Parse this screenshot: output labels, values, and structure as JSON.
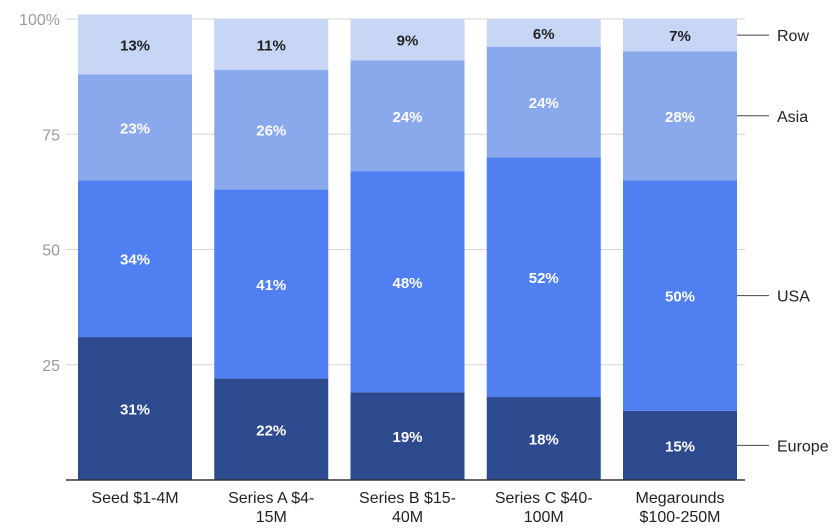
{
  "chart_data": {
    "type": "bar",
    "stacked": true,
    "title": "",
    "xlabel": "",
    "ylabel": "",
    "ylim": [
      0,
      100
    ],
    "y_ticks": [
      {
        "value": 25,
        "label": "25"
      },
      {
        "value": 50,
        "label": "50"
      },
      {
        "value": 75,
        "label": "75"
      },
      {
        "value": 100,
        "label": "100%"
      }
    ],
    "grid": true,
    "legend_position": "right",
    "categories": [
      [
        "Seed $1-4M"
      ],
      [
        "Series A $4-",
        "15M"
      ],
      [
        "Series B $15-",
        "40M"
      ],
      [
        "Series C $40-",
        "100M"
      ],
      [
        "Megarounds",
        "$100-250M"
      ]
    ],
    "series": [
      {
        "name": "Europe",
        "color": "#2d4a8e",
        "label_color": "#ffffff",
        "values": [
          31,
          22,
          19,
          18,
          15
        ],
        "labels": [
          "31%",
          "22%",
          "19%",
          "18%",
          "15%"
        ]
      },
      {
        "name": "USA",
        "color": "#4f7ff0",
        "label_color": "#ffffff",
        "values": [
          34,
          41,
          48,
          52,
          50
        ],
        "labels": [
          "34%",
          "41%",
          "48%",
          "52%",
          "50%"
        ]
      },
      {
        "name": "Asia",
        "color": "#8aa8ec",
        "label_color": "#ffffff",
        "values": [
          23,
          26,
          24,
          24,
          28
        ],
        "labels": [
          "23%",
          "26%",
          "24%",
          "24%",
          "28%"
        ]
      },
      {
        "name": "Row",
        "color": "#c8d6f6",
        "label_color": "#222222",
        "values": [
          13,
          11,
          9,
          6,
          7
        ],
        "labels": [
          "13%",
          "11%",
          "9%",
          "6%",
          "7%"
        ]
      }
    ]
  }
}
